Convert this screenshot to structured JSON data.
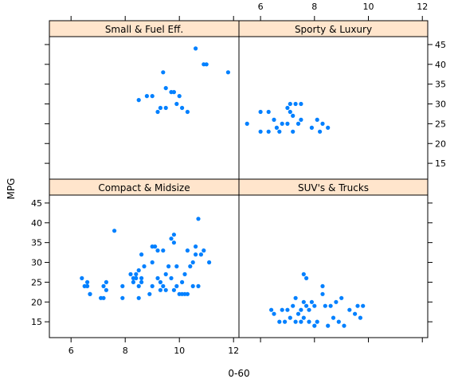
{
  "chart_data": {
    "type": "scatter",
    "title": "",
    "xlabel": "0-60",
    "ylabel": "MPG",
    "xlim": [
      5.2,
      12.2
    ],
    "ylim": [
      11,
      47
    ],
    "x_ticks": [
      6,
      8,
      10,
      12
    ],
    "y_ticks": [
      15,
      20,
      25,
      30,
      35,
      40,
      45
    ],
    "strip_color": "#ffe5cc",
    "point_color": "#0080ff",
    "panels": [
      {
        "id": "small",
        "name": "Small & Fuel Eff.",
        "x": [
          8.5,
          8.8,
          9.0,
          9.2,
          9.3,
          9.4,
          9.5,
          9.5,
          9.7,
          9.8,
          9.9,
          10.0,
          10.1,
          10.3,
          10.6,
          10.9,
          11.0,
          11.8
        ],
        "y": [
          31,
          32,
          32,
          28,
          29,
          38,
          29,
          34,
          33,
          33,
          30,
          32,
          29,
          28,
          44,
          40,
          40,
          38
        ]
      },
      {
        "id": "sporty",
        "name": "Sporty & Luxury",
        "x": [
          5.5,
          6.0,
          6.0,
          6.3,
          6.3,
          6.5,
          6.6,
          6.7,
          6.8,
          7.0,
          7.0,
          7.1,
          7.1,
          7.2,
          7.2,
          7.3,
          7.4,
          7.5,
          7.5,
          7.9,
          8.1,
          8.2,
          8.3,
          8.5
        ],
        "y": [
          25,
          23,
          28,
          23,
          28,
          26,
          24,
          23,
          25,
          25,
          29,
          28,
          30,
          23,
          27,
          30,
          25,
          30,
          26,
          24,
          26,
          23,
          25,
          24
        ]
      },
      {
        "id": "compact",
        "name": "Compact & Midsize",
        "x": [
          6.4,
          6.5,
          6.6,
          6.6,
          6.7,
          6.7,
          7.1,
          7.2,
          7.2,
          7.3,
          7.3,
          7.6,
          7.9,
          7.9,
          8.2,
          8.3,
          8.3,
          8.4,
          8.4,
          8.5,
          8.5,
          8.5,
          8.6,
          8.6,
          8.6,
          8.7,
          8.9,
          9.0,
          9.0,
          9.0,
          9.1,
          9.2,
          9.2,
          9.3,
          9.3,
          9.4,
          9.4,
          9.5,
          9.5,
          9.6,
          9.7,
          9.7,
          9.8,
          9.8,
          9.8,
          9.9,
          9.9,
          10.0,
          10.1,
          10.1,
          10.2,
          10.2,
          10.3,
          10.3,
          10.4,
          10.5,
          10.5,
          10.6,
          10.6,
          10.7,
          10.7,
          10.8,
          10.9,
          11.1
        ],
        "y": [
          26,
          24,
          25,
          24,
          22,
          22,
          21,
          21,
          24,
          25,
          23,
          38,
          21,
          24,
          27,
          25,
          26,
          27,
          26,
          21,
          24,
          28,
          25,
          32,
          26,
          29,
          22,
          30,
          24,
          34,
          34,
          26,
          33,
          23,
          25,
          33,
          24,
          23,
          27,
          29,
          26,
          36,
          35,
          37,
          23,
          24,
          29,
          22,
          25,
          22,
          22,
          27,
          33,
          22,
          29,
          30,
          24,
          32,
          34,
          41,
          24,
          32,
          33,
          30
        ]
      },
      {
        "id": "suv",
        "name": "SUV's & Trucks",
        "x": [
          6.4,
          6.5,
          6.7,
          6.8,
          6.9,
          7.0,
          7.1,
          7.2,
          7.3,
          7.3,
          7.4,
          7.5,
          7.5,
          7.6,
          7.6,
          7.6,
          7.7,
          7.7,
          7.8,
          7.8,
          7.9,
          8.0,
          8.0,
          8.1,
          8.3,
          8.3,
          8.4,
          8.5,
          8.6,
          8.7,
          8.8,
          8.9,
          9.0,
          9.1,
          9.3,
          9.5,
          9.6,
          9.7,
          9.8
        ],
        "y": [
          18,
          17,
          15,
          18,
          15,
          18,
          16,
          19,
          15,
          21,
          17,
          18,
          15,
          16,
          20,
          27,
          19,
          26,
          15,
          18,
          20,
          14,
          19,
          15,
          22,
          24,
          19,
          14,
          19,
          16,
          20,
          15,
          21,
          14,
          18,
          17,
          19,
          16,
          19
        ]
      }
    ]
  }
}
